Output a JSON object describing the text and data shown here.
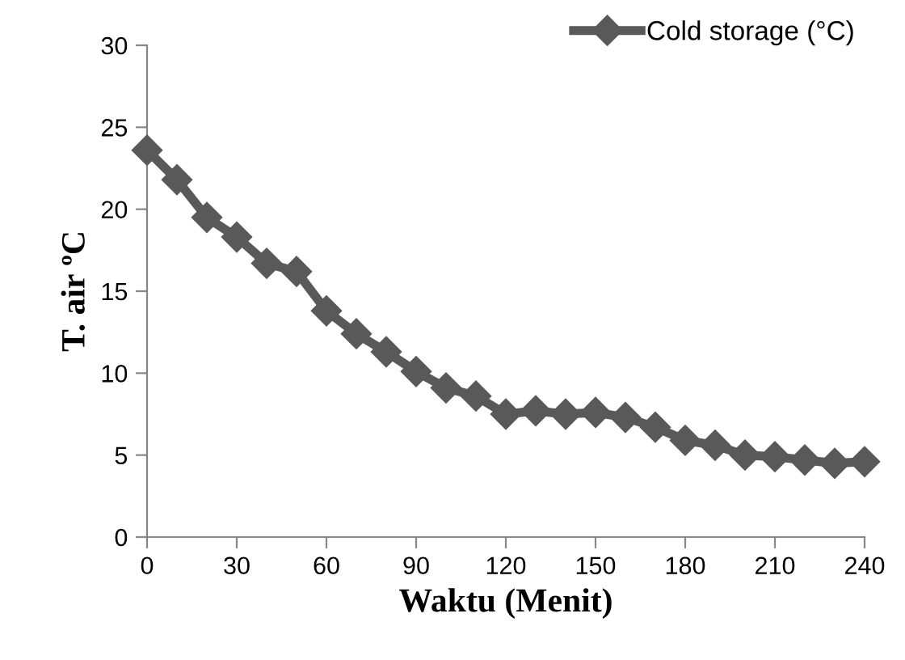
{
  "chart_data": {
    "type": "line",
    "xlabel": "Waktu (Menit)",
    "ylabel": "T. air ºC",
    "x": [
      0,
      10,
      20,
      30,
      40,
      50,
      60,
      70,
      80,
      90,
      100,
      110,
      120,
      130,
      140,
      150,
      160,
      170,
      180,
      190,
      200,
      210,
      220,
      230,
      240
    ],
    "series": [
      {
        "name": "Cold storage (°C)",
        "color": "#595959",
        "values": [
          23.6,
          21.8,
          19.5,
          18.3,
          16.7,
          16.2,
          13.8,
          12.4,
          11.3,
          10.1,
          9.1,
          8.6,
          7.5,
          7.7,
          7.5,
          7.6,
          7.3,
          6.7,
          5.9,
          5.6,
          5.0,
          4.9,
          4.7,
          4.5,
          4.6
        ]
      }
    ],
    "xlim": [
      0,
      240
    ],
    "xticks": [
      0,
      30,
      60,
      90,
      120,
      150,
      180,
      210,
      240
    ],
    "ylim": [
      0,
      30
    ],
    "yticks": [
      0,
      5,
      10,
      15,
      20,
      25,
      30
    ],
    "grid": false,
    "legend": "top right",
    "marker": "diamond",
    "line_style": "solid"
  }
}
